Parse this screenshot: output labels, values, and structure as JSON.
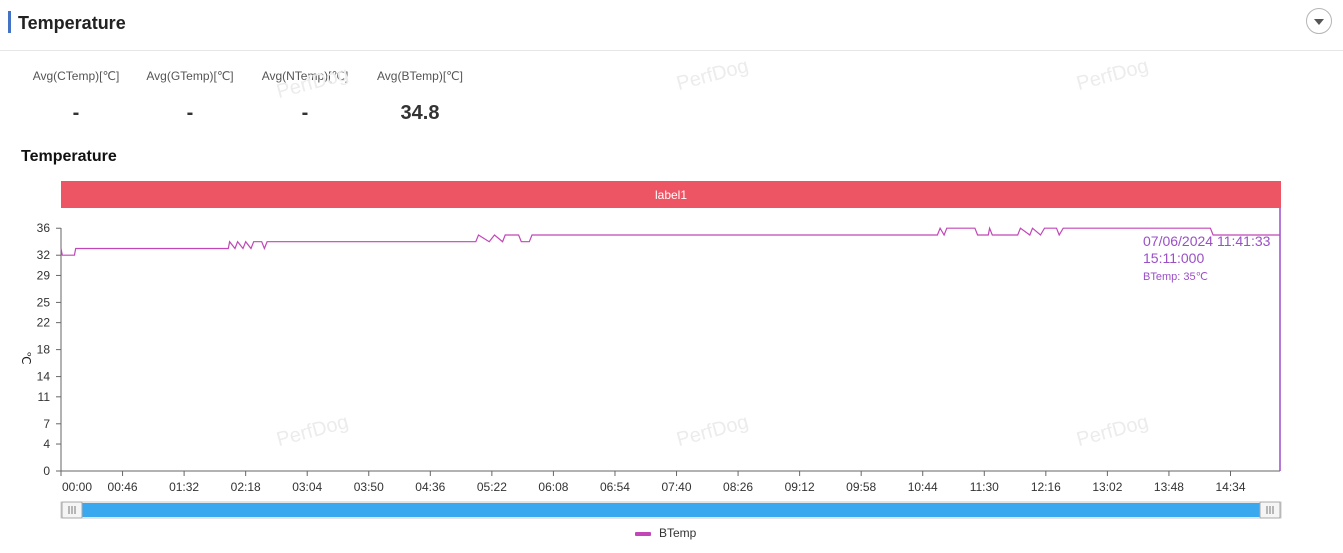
{
  "header": {
    "title": "Temperature"
  },
  "stats": [
    {
      "label": "Avg(CTemp)[℃]",
      "value": "-"
    },
    {
      "label": "Avg(GTemp)[℃]",
      "value": "-"
    },
    {
      "label": "Avg(NTemp)[℃]",
      "value": "-"
    },
    {
      "label": "Avg(BTemp)[℃]",
      "value": "34.8"
    }
  ],
  "section_title": "Temperature",
  "watermark": "PerfDog",
  "colors": {
    "accent": "#4472c4",
    "label_band": "#ee5564",
    "series": "#c246b8",
    "cursor": "#9b4fc7",
    "slider": "#3aa8ee"
  },
  "chart_data": {
    "type": "line",
    "title": "Temperature",
    "ylabel": "℃",
    "xlabel": "",
    "y_ticks": [
      0,
      4,
      7,
      11,
      14,
      18,
      22,
      25,
      29,
      32,
      36
    ],
    "ylim": [
      0,
      39
    ],
    "x_ticks": [
      "00:00",
      "00:46",
      "01:32",
      "02:18",
      "03:04",
      "03:50",
      "04:36",
      "05:22",
      "06:08",
      "06:54",
      "07:40",
      "08:26",
      "09:12",
      "09:58",
      "10:44",
      "11:30",
      "12:16",
      "13:02",
      "13:48",
      "14:34"
    ],
    "x_range_seconds": [
      0,
      54660
    ],
    "grid": false,
    "legend_position": "bottom-center",
    "band_label": "label1",
    "series": [
      {
        "name": "BTemp",
        "color": "#c246b8",
        "points": [
          [
            0,
            33
          ],
          [
            60,
            32
          ],
          [
            600,
            32
          ],
          [
            660,
            33
          ],
          [
            7500,
            33
          ],
          [
            7560,
            34
          ],
          [
            7800,
            33
          ],
          [
            7920,
            34
          ],
          [
            8160,
            33
          ],
          [
            8280,
            34
          ],
          [
            8520,
            33
          ],
          [
            8640,
            34
          ],
          [
            9000,
            34
          ],
          [
            9120,
            33
          ],
          [
            9240,
            34
          ],
          [
            18600,
            34
          ],
          [
            18720,
            35
          ],
          [
            19200,
            34
          ],
          [
            19440,
            35
          ],
          [
            19800,
            34
          ],
          [
            19920,
            35
          ],
          [
            20520,
            35
          ],
          [
            20640,
            34
          ],
          [
            21000,
            34
          ],
          [
            21120,
            35
          ],
          [
            39300,
            35
          ],
          [
            39420,
            36
          ],
          [
            39600,
            35
          ],
          [
            39720,
            36
          ],
          [
            40980,
            36
          ],
          [
            41100,
            35
          ],
          [
            41580,
            35
          ],
          [
            41640,
            36
          ],
          [
            41760,
            35
          ],
          [
            42900,
            35
          ],
          [
            43020,
            36
          ],
          [
            43440,
            35
          ],
          [
            43560,
            36
          ],
          [
            43920,
            35
          ],
          [
            44100,
            36
          ],
          [
            44640,
            36
          ],
          [
            44760,
            35
          ],
          [
            44940,
            36
          ],
          [
            51540,
            36
          ],
          [
            51660,
            35
          ],
          [
            54660,
            35
          ]
        ]
      }
    ],
    "tooltip": {
      "date": "07/06/2024 11:41:33",
      "time": "15:11:000",
      "series": "BTemp",
      "value": "35℃"
    }
  }
}
